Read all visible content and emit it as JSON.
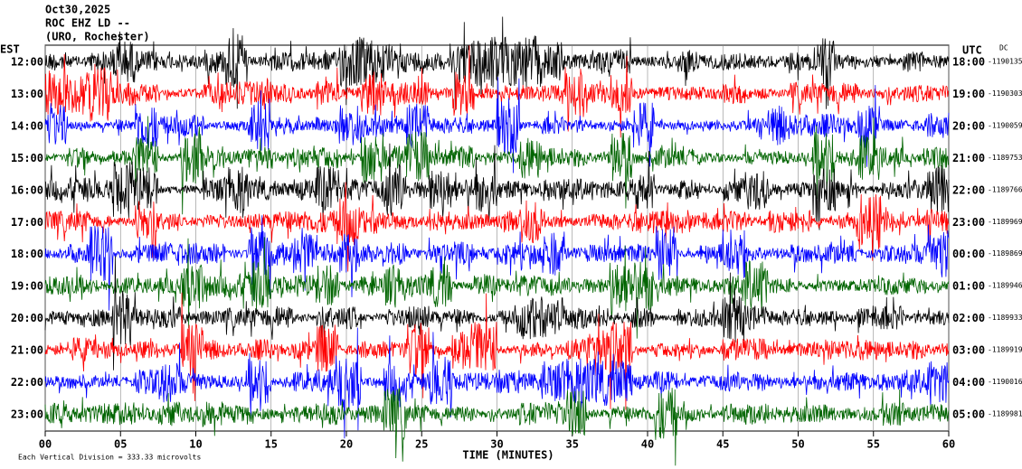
{
  "header": {
    "date": "Oct30,2025",
    "station": "ROC EHZ LD --",
    "location": "(URO, Rochester)"
  },
  "left_axis_label": "EST",
  "right_axis_label": "UTC",
  "dc_label": "DC",
  "rows": [
    {
      "est": "12:00",
      "utc": "18:00",
      "dc": "-1190135",
      "color": "#000000"
    },
    {
      "est": "13:00",
      "utc": "19:00",
      "dc": "-1190303",
      "color": "#ff0000"
    },
    {
      "est": "14:00",
      "utc": "20:00",
      "dc": "-1190059",
      "color": "#0000ff"
    },
    {
      "est": "15:00",
      "utc": "21:00",
      "dc": "-1189753",
      "color": "#006400"
    },
    {
      "est": "16:00",
      "utc": "22:00",
      "dc": "-1189766",
      "color": "#000000"
    },
    {
      "est": "17:00",
      "utc": "23:00",
      "dc": "-1189969",
      "color": "#ff0000"
    },
    {
      "est": "18:00",
      "utc": "00:00",
      "dc": "-1189869",
      "color": "#0000ff"
    },
    {
      "est": "19:00",
      "utc": "01:00",
      "dc": "-1189946",
      "color": "#006400"
    },
    {
      "est": "20:00",
      "utc": "02:00",
      "dc": "-1189933",
      "color": "#000000"
    },
    {
      "est": "21:00",
      "utc": "03:00",
      "dc": "-1189919",
      "color": "#ff0000"
    },
    {
      "est": "22:00",
      "utc": "04:00",
      "dc": "-1190016",
      "color": "#0000ff"
    },
    {
      "est": "23:00",
      "utc": "05:00",
      "dc": "-1189981",
      "color": "#006400"
    }
  ],
  "x_axis": {
    "title": "TIME (MINUTES)",
    "ticks": [
      "00",
      "05",
      "10",
      "15",
      "20",
      "25",
      "30",
      "35",
      "40",
      "45",
      "50",
      "55",
      "60"
    ]
  },
  "footer": "Each Vertical Division =  333.33 microvolts"
}
